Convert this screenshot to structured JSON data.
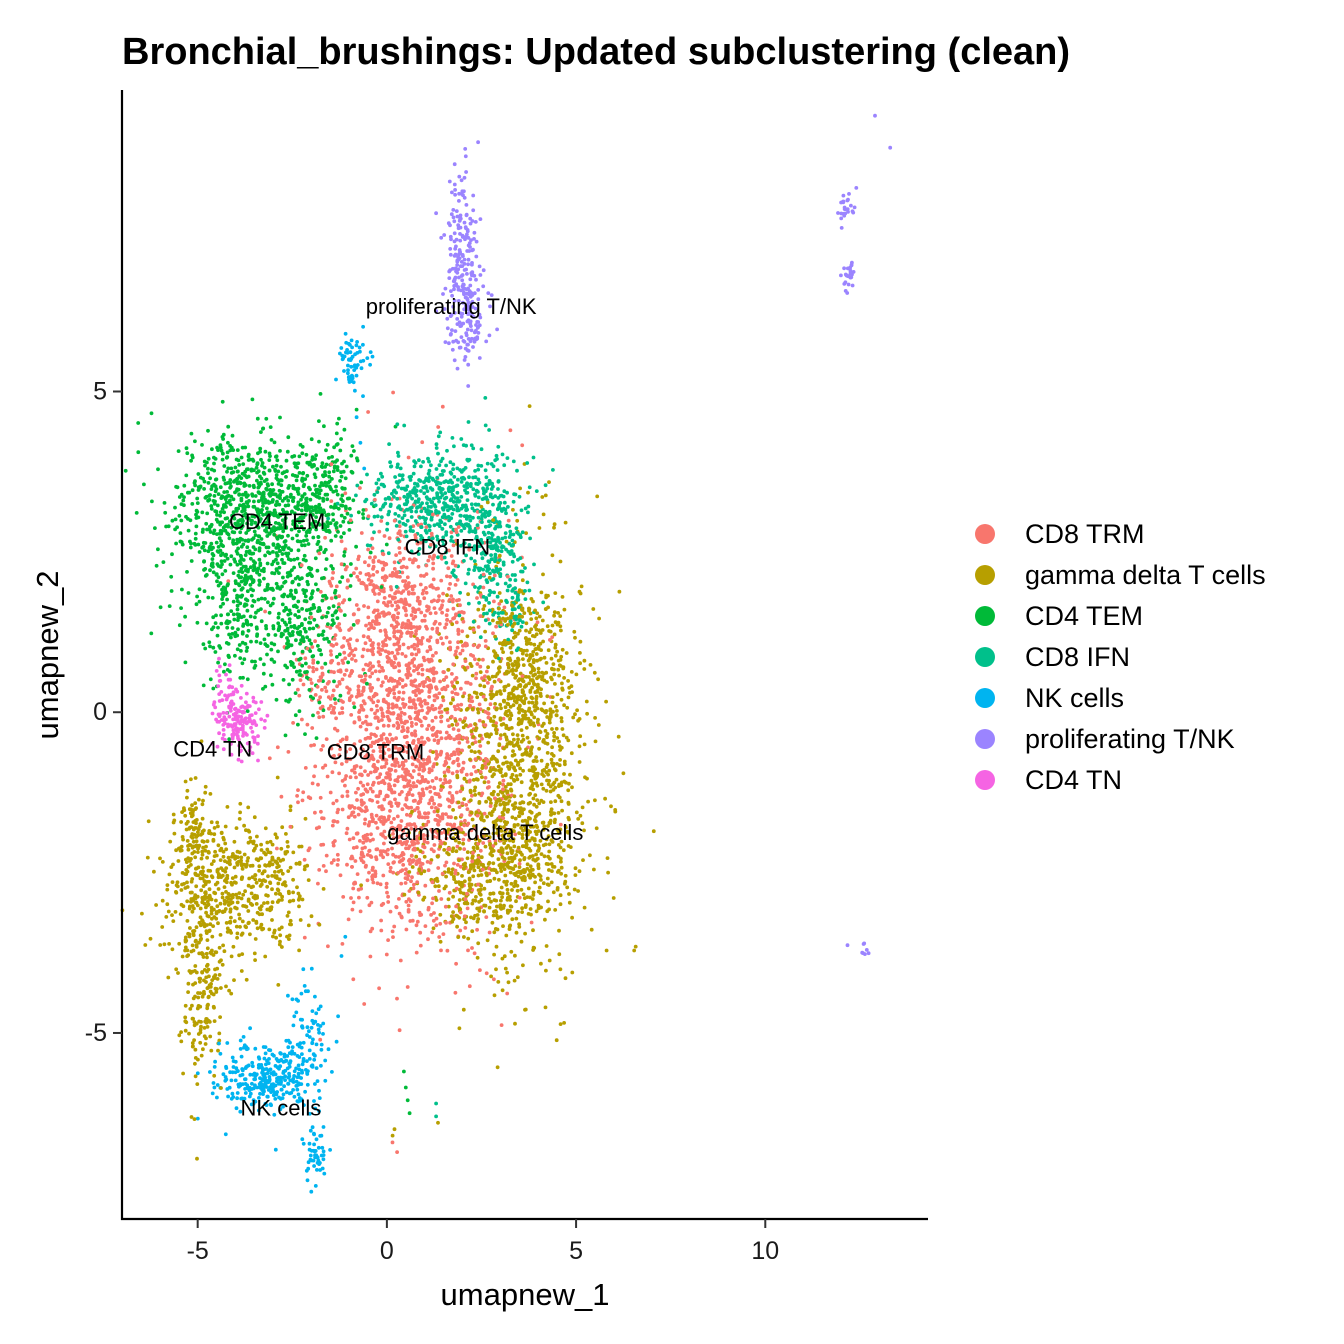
{
  "chart_data": {
    "type": "scatter",
    "title": "Bronchial_brushings: Updated subclustering (clean)",
    "xlabel": "umapnew_1",
    "ylabel": "umapnew_2",
    "xlim": [
      -7.0,
      14.3
    ],
    "ylim": [
      -7.9,
      9.7
    ],
    "x_ticks": [
      -5,
      0,
      5,
      10
    ],
    "y_ticks": [
      -5,
      0,
      5
    ],
    "grid": false,
    "legend_position": "right",
    "clusters": [
      {
        "name": "CD8 TRM",
        "color": "#F8766D",
        "label_pos": [
          -0.3,
          -0.65
        ],
        "blobs": [
          {
            "cx": 0.6,
            "cy": -0.3,
            "sx": 1.2,
            "sy": 1.6,
            "n": 1700
          },
          {
            "cx": 0.2,
            "cy": -2.0,
            "sx": 0.8,
            "sy": 0.5,
            "n": 200
          },
          {
            "cx": 0.3,
            "cy": 1.8,
            "sx": 0.8,
            "sy": 0.6,
            "n": 220
          },
          {
            "cx": -1.6,
            "cy": 0.5,
            "sx": 0.5,
            "sy": 0.4,
            "n": 60
          }
        ]
      },
      {
        "name": "gamma delta T cells",
        "color": "#B79F00",
        "label_pos": [
          2.6,
          -1.9
        ],
        "blobs": [
          {
            "cx": 3.5,
            "cy": -0.9,
            "sx": 0.9,
            "sy": 1.5,
            "n": 1200
          },
          {
            "cx": 2.4,
            "cy": -2.5,
            "sx": 1.0,
            "sy": 0.45,
            "n": 300
          },
          {
            "cx": 3.8,
            "cy": 0.8,
            "sx": 0.5,
            "sy": 0.5,
            "n": 150
          },
          {
            "cx": -4.3,
            "cy": -2.7,
            "sx": 0.9,
            "sy": 0.6,
            "n": 450
          },
          {
            "cx": -4.9,
            "cy": -4.1,
            "sx": 0.3,
            "sy": 0.8,
            "n": 200
          },
          {
            "cx": -5.1,
            "cy": -1.9,
            "sx": 0.25,
            "sy": 0.4,
            "n": 80
          },
          {
            "cx": -2.9,
            "cy": -2.6,
            "sx": 0.4,
            "sy": 0.4,
            "n": 100
          }
        ]
      },
      {
        "name": "CD4 TEM",
        "color": "#00BA38",
        "label_pos": [
          -2.9,
          2.95
        ],
        "blobs": [
          {
            "cx": -3.6,
            "cy": 3.2,
            "sx": 1.1,
            "sy": 0.6,
            "n": 750
          },
          {
            "cx": -3.9,
            "cy": 1.9,
            "sx": 0.7,
            "sy": 0.7,
            "n": 300
          },
          {
            "cx": -2.3,
            "cy": 1.4,
            "sx": 0.7,
            "sy": 0.7,
            "n": 300
          },
          {
            "cx": -1.7,
            "cy": 3.4,
            "sx": 0.5,
            "sy": 0.5,
            "n": 180
          }
        ]
      },
      {
        "name": "CD8 IFN",
        "color": "#00C08B",
        "label_pos": [
          1.6,
          2.55
        ],
        "blobs": [
          {
            "cx": 1.4,
            "cy": 3.3,
            "sx": 1.0,
            "sy": 0.4,
            "n": 550
          },
          {
            "cx": 2.8,
            "cy": 2.4,
            "sx": 0.4,
            "sy": 0.4,
            "n": 180
          },
          {
            "cx": 3.2,
            "cy": 1.6,
            "sx": 0.3,
            "sy": 0.3,
            "n": 60
          }
        ]
      },
      {
        "name": "NK cells",
        "color": "#00B4F0",
        "label_pos": [
          -2.8,
          -6.2
        ],
        "blobs": [
          {
            "cx": -3.3,
            "cy": -5.7,
            "sx": 0.6,
            "sy": 0.25,
            "n": 280
          },
          {
            "cx": -2.1,
            "cy": -5.1,
            "sx": 0.3,
            "sy": 0.5,
            "n": 90
          },
          {
            "cx": -1.9,
            "cy": -6.9,
            "sx": 0.15,
            "sy": 0.2,
            "n": 50
          },
          {
            "cx": -0.9,
            "cy": 5.5,
            "sx": 0.2,
            "sy": 0.2,
            "n": 60
          }
        ]
      },
      {
        "name": "proliferating T/NK",
        "color": "#9B84FF",
        "label_pos": [
          1.7,
          6.3
        ],
        "blobs": [
          {
            "cx": 2.0,
            "cy": 7.0,
            "sx": 0.25,
            "sy": 0.7,
            "n": 200
          },
          {
            "cx": 2.1,
            "cy": 6.1,
            "sx": 0.3,
            "sy": 0.3,
            "n": 80
          },
          {
            "cx": 12.2,
            "cy": 7.9,
            "sx": 0.12,
            "sy": 0.15,
            "n": 25
          },
          {
            "cx": 12.2,
            "cy": 6.8,
            "sx": 0.1,
            "sy": 0.12,
            "n": 25
          },
          {
            "cx": 12.6,
            "cy": -3.7,
            "sx": 0.1,
            "sy": 0.06,
            "n": 8
          }
        ]
      },
      {
        "name": "CD4 TN",
        "color": "#F564E3",
        "label_pos": [
          -4.6,
          -0.6
        ],
        "blobs": [
          {
            "cx": -3.9,
            "cy": -0.15,
            "sx": 0.3,
            "sy": 0.25,
            "n": 160
          },
          {
            "cx": -4.3,
            "cy": 0.5,
            "sx": 0.2,
            "sy": 0.2,
            "n": 20
          }
        ]
      }
    ],
    "stray_points": [
      {
        "x": 0.45,
        "y": -5.6,
        "cluster": "CD4 TEM"
      },
      {
        "x": 0.5,
        "y": -5.85,
        "cluster": "CD4 TEM"
      },
      {
        "x": 0.55,
        "y": -6.05,
        "cluster": "CD4 TEM"
      },
      {
        "x": 0.6,
        "y": -6.25,
        "cluster": "CD4 TEM"
      },
      {
        "x": 0.2,
        "y": -6.5,
        "cluster": "gamma delta T cells"
      },
      {
        "x": 0.15,
        "y": -6.6,
        "cluster": "gamma delta T cells"
      },
      {
        "x": 1.3,
        "y": -6.3,
        "cluster": "CD8 IFN"
      },
      {
        "x": 1.35,
        "y": -6.4,
        "cluster": "gamma delta T cells"
      },
      {
        "x": 1.3,
        "y": -6.1,
        "cluster": "CD8 IFN"
      },
      {
        "x": 2.6,
        "y": 4.9,
        "cluster": "CD8 IFN"
      },
      {
        "x": 2.7,
        "y": 4.4,
        "cluster": "CD8 IFN"
      },
      {
        "x": 2.5,
        "y": 4.1,
        "cluster": "CD8 IFN"
      },
      {
        "x": 12.9,
        "y": 9.3,
        "cluster": "proliferating T/NK"
      },
      {
        "x": 13.3,
        "y": 8.8,
        "cluster": "proliferating T/NK"
      },
      {
        "x": -0.8,
        "y": 4.6,
        "cluster": "NK cells"
      },
      {
        "x": -0.7,
        "y": 4.2,
        "cluster": "NK cells"
      },
      {
        "x": -0.6,
        "y": 3.8,
        "cluster": "NK cells"
      },
      {
        "x": -1.1,
        "y": -3.5,
        "cluster": "NK cells"
      },
      {
        "x": -1.2,
        "y": -3.8,
        "cluster": "NK cells"
      }
    ]
  }
}
